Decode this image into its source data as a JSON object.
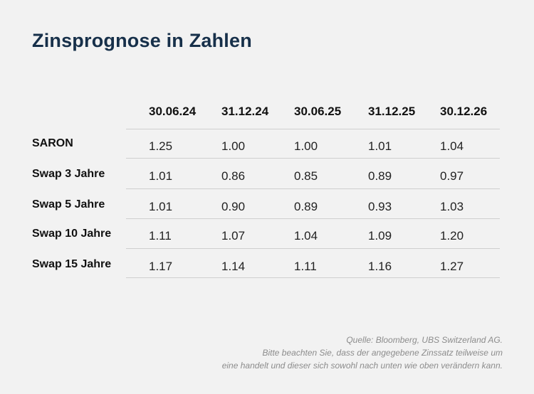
{
  "title": "Zinsprognose in Zahlen",
  "columns": [
    "30.06.24",
    "31.12.24",
    "30.06.25",
    "31.12.25",
    "30.12.26"
  ],
  "rows": [
    {
      "label": "SARON",
      "values": [
        "1.25",
        "1.00",
        "1.00",
        "1.01",
        "1.04"
      ]
    },
    {
      "label": "Swap 3 Jahre",
      "values": [
        "1.01",
        "0.86",
        "0.85",
        "0.89",
        "0.97"
      ]
    },
    {
      "label": "Swap 5 Jahre",
      "values": [
        "1.01",
        "0.90",
        "0.89",
        "0.93",
        "1.03"
      ]
    },
    {
      "label": "Swap 10 Jahre",
      "values": [
        "1.11",
        "1.07",
        "1.04",
        "1.09",
        "1.20"
      ]
    },
    {
      "label": "Swap 15 Jahre",
      "values": [
        "1.17",
        "1.14",
        "1.11",
        "1.16",
        "1.27"
      ]
    }
  ],
  "footer": {
    "source": "Quelle: Bloomberg, UBS Switzerland AG.",
    "note_line1": "Bitte beachten Sie, dass der angegebene Zinssatz teilweise um",
    "note_line2": "eine handelt und dieser sich sowohl nach unten wie oben verändern kann."
  }
}
